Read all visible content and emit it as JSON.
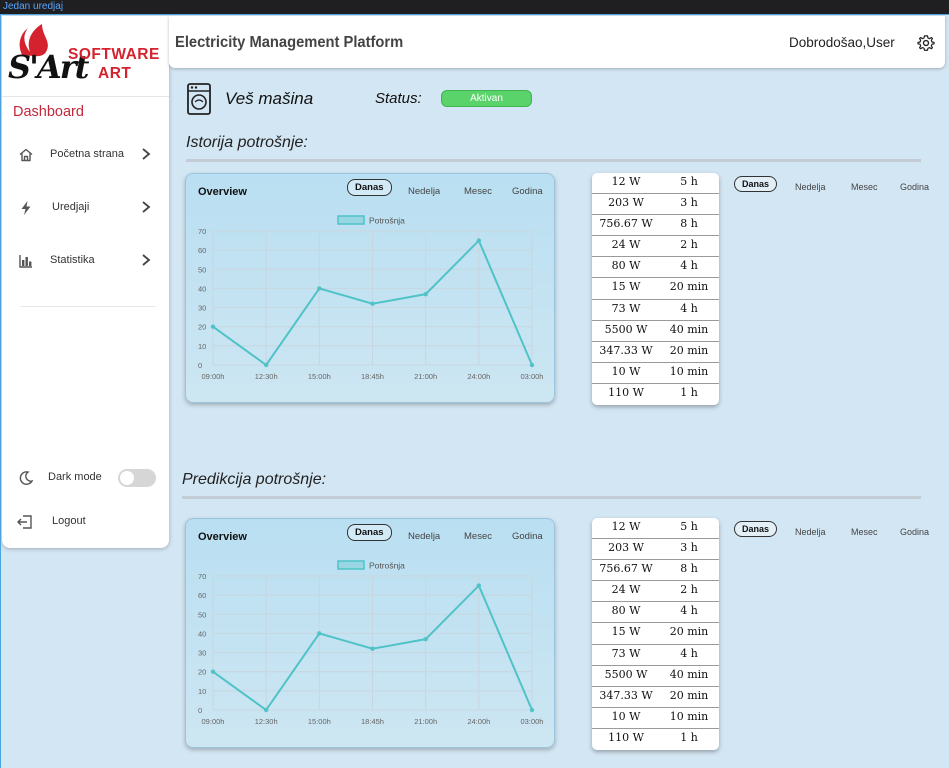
{
  "window": {
    "title": "Jedan uredjaj"
  },
  "sidebar": {
    "logo": {
      "mark": "S'Art",
      "line1": "SOFTWARE",
      "line2": "ART"
    },
    "section_title": "Dashboard",
    "items": [
      {
        "label": "Početna strana",
        "icon": "home-icon"
      },
      {
        "label": "Uredjaji",
        "icon": "bolt-icon"
      },
      {
        "label": "Statistika",
        "icon": "bar-chart-icon"
      }
    ],
    "dark_mode_label": "Dark mode",
    "dark_mode_on": false,
    "logout_label": "Logout"
  },
  "header": {
    "title": "Electricity Management Platform",
    "welcome": "Dobrodošao,User"
  },
  "device": {
    "name": "Veš mašina",
    "status_label": "Status:",
    "status_value": "Aktivan",
    "status_color": "#5ad46a"
  },
  "history": {
    "title": "Istorija potrošnje:",
    "chart": {
      "card_title": "Overview",
      "tabs": [
        "Danas",
        "Nedelja",
        "Mesec",
        "Godina"
      ],
      "active_tab": "Danas"
    },
    "table": [
      [
        "12 W",
        "5 h"
      ],
      [
        "203 W",
        "3 h"
      ],
      [
        "756.67 W",
        "8 h"
      ],
      [
        "24 W",
        "2 h"
      ],
      [
        "80 W",
        "4 h"
      ],
      [
        "15 W",
        "20 min"
      ],
      [
        "73 W",
        "4 h"
      ],
      [
        "5500 W",
        "40 min"
      ],
      [
        "347.33 W",
        "20 min"
      ],
      [
        "10 W",
        "10 min"
      ],
      [
        "110 W",
        "1 h"
      ]
    ],
    "filter_tabs": [
      "Danas",
      "Nedelja",
      "Mesec",
      "Godina"
    ]
  },
  "prediction": {
    "title": "Predikcija potrošnje:",
    "chart": {
      "card_title": "Overview",
      "tabs": [
        "Danas",
        "Nedelja",
        "Mesec",
        "Godina"
      ],
      "active_tab": "Danas"
    },
    "table": [
      [
        "12 W",
        "5 h"
      ],
      [
        "203 W",
        "3 h"
      ],
      [
        "756.67 W",
        "8 h"
      ],
      [
        "24 W",
        "2 h"
      ],
      [
        "80 W",
        "4 h"
      ],
      [
        "15 W",
        "20 min"
      ],
      [
        "73 W",
        "4 h"
      ],
      [
        "5500 W",
        "40 min"
      ],
      [
        "347.33 W",
        "20 min"
      ],
      [
        "10 W",
        "10 min"
      ],
      [
        "110 W",
        "1 h"
      ]
    ],
    "filter_tabs": [
      "Danas",
      "Nedelja",
      "Mesec",
      "Godina"
    ]
  },
  "chart_data": [
    {
      "type": "line",
      "categories": [
        "09:00h",
        "12:30h",
        "15:00h",
        "18:45h",
        "21:00h",
        "24:00h",
        "03:00h"
      ],
      "series": [
        {
          "name": "Potrošnja",
          "values": [
            20,
            0,
            40,
            32,
            37,
            65,
            0
          ]
        }
      ],
      "ylim": [
        0,
        70
      ],
      "yticks": [
        0,
        10,
        20,
        30,
        40,
        50,
        60,
        70
      ],
      "legend": "top-center",
      "grid": true,
      "color": "#4fc3c7"
    },
    {
      "type": "line",
      "categories": [
        "09:00h",
        "12:30h",
        "15:00h",
        "18:45h",
        "21:00h",
        "24:00h",
        "03:00h"
      ],
      "series": [
        {
          "name": "Potrošnja",
          "values": [
            20,
            0,
            40,
            32,
            37,
            65,
            0
          ]
        }
      ],
      "ylim": [
        0,
        70
      ],
      "yticks": [
        0,
        10,
        20,
        30,
        40,
        50,
        60,
        70
      ],
      "legend": "top-center",
      "grid": true,
      "color": "#4fc3c7"
    }
  ]
}
